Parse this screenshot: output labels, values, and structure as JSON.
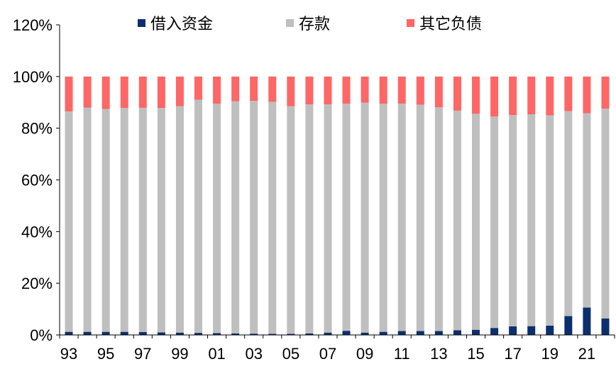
{
  "chart_data": {
    "type": "bar",
    "stacked": true,
    "categories": [
      "93",
      "94",
      "95",
      "96",
      "97",
      "98",
      "99",
      "00",
      "01",
      "02",
      "03",
      "04",
      "05",
      "06",
      "07",
      "08",
      "09",
      "10",
      "11",
      "12",
      "13",
      "14",
      "15",
      "16",
      "17",
      "18",
      "19",
      "20",
      "21",
      "22"
    ],
    "x_tick_labels": [
      "93",
      "95",
      "97",
      "99",
      "01",
      "03",
      "05",
      "07",
      "09",
      "11",
      "13",
      "15",
      "17",
      "19",
      "21"
    ],
    "series": [
      {
        "name": "借入资金",
        "color": "#0b2f6e",
        "values": [
          1.2,
          1.2,
          1.2,
          1.2,
          1.1,
          1.0,
          0.9,
          0.8,
          0.7,
          0.6,
          0.5,
          0.4,
          0.4,
          0.6,
          0.9,
          1.6,
          0.9,
          1.2,
          1.5,
          1.5,
          1.5,
          1.8,
          2.0,
          2.7,
          3.3,
          3.4,
          3.6,
          7.3,
          10.6,
          6.4
        ]
      },
      {
        "name": "存款",
        "color": "#bfbfbf",
        "values": [
          85.3,
          86.8,
          86.2,
          86.6,
          86.8,
          86.8,
          87.6,
          90.2,
          88.8,
          89.8,
          90.1,
          89.8,
          88.1,
          88.6,
          88.3,
          87.9,
          89.0,
          88.3,
          88.0,
          87.6,
          86.6,
          85.0,
          83.6,
          81.8,
          81.8,
          82.0,
          81.4,
          79.3,
          75.2,
          81.2
        ]
      },
      {
        "name": "其它负债",
        "color": "#ff6666",
        "values": [
          13.5,
          12.0,
          12.6,
          12.2,
          12.1,
          12.2,
          11.5,
          9.0,
          10.5,
          9.6,
          9.4,
          9.8,
          11.5,
          10.8,
          10.8,
          10.5,
          10.1,
          10.5,
          10.5,
          10.9,
          11.9,
          13.2,
          14.4,
          15.5,
          14.9,
          14.6,
          15.0,
          13.4,
          14.2,
          12.4
        ]
      }
    ],
    "y_tick_labels": [
      "0%",
      "20%",
      "40%",
      "60%",
      "80%",
      "100%",
      "120%"
    ],
    "ylim": [
      0,
      120
    ],
    "y_unit": "%",
    "grid": false,
    "legend_position": "top"
  }
}
